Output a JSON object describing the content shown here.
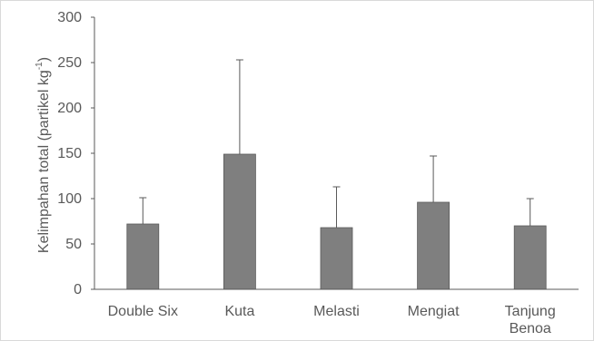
{
  "chart_data": {
    "type": "bar",
    "title": "",
    "xlabel": "",
    "ylabel": {
      "main": "Kelimpahan total (partikel kg",
      "superscript": "-1",
      "close": ")"
    },
    "categories": [
      [
        "Double Six"
      ],
      [
        "Kuta"
      ],
      [
        "Melasti"
      ],
      [
        "Mengiat"
      ],
      [
        "Tanjung",
        "Benoa"
      ]
    ],
    "values": [
      72,
      149,
      68,
      96,
      70
    ],
    "error_upper": [
      29,
      104,
      45,
      51,
      30
    ],
    "ylim": [
      0,
      300
    ],
    "yticks": [
      0,
      50,
      100,
      150,
      200,
      250,
      300
    ],
    "grid": false,
    "legend": "none",
    "colors": {
      "bar_fill": "#7f7f7f",
      "bar_border": "#595959",
      "error_bar": "#595959",
      "axis": "#595959",
      "text": "#595959"
    }
  }
}
